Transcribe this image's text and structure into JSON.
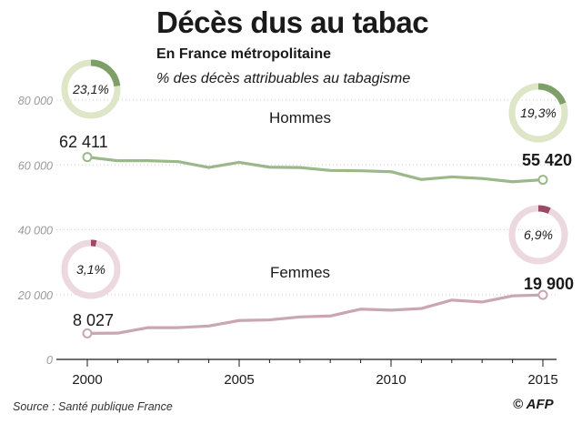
{
  "title": "Décès dus au tabac",
  "subtitle": "En France métropolitaine",
  "note": "% des décès attribuables au tabagisme",
  "source": "Source : Santé publique France",
  "logo": "© AFP",
  "colors": {
    "men_line": "#9bb88a",
    "men_ring": "#dde6c7",
    "men_fill": "#7e9f68",
    "women_line": "#c9a6b2",
    "women_ring": "#ecd9df",
    "women_fill": "#9a4a63",
    "axis_text": "#9a9a9a",
    "grid": "#cfcfcf"
  },
  "chart_data": {
    "type": "line",
    "x": [
      2000,
      2001,
      2002,
      2003,
      2004,
      2005,
      2006,
      2007,
      2008,
      2009,
      2010,
      2011,
      2012,
      2013,
      2014,
      2015
    ],
    "xticks": [
      "2000",
      "2005",
      "2010",
      "2015"
    ],
    "yticks": [
      "0",
      "20 000",
      "40 000",
      "60 000",
      "80 000"
    ],
    "ylim": [
      0,
      80000
    ],
    "xlim": [
      2000,
      2015
    ],
    "grid": "horizontal dotted",
    "series": [
      {
        "name": "Hommes",
        "values": [
          62411,
          61300,
          61300,
          61000,
          59200,
          60800,
          59300,
          59200,
          58300,
          58200,
          57900,
          55500,
          56300,
          55800,
          54800,
          55420
        ],
        "start_label": "62 411",
        "end_label": "55 420",
        "pct_2000": 23.1,
        "pct_2000_label": "23,1%",
        "pct_2015": 19.3,
        "pct_2015_label": "19,3%"
      },
      {
        "name": "Femmes",
        "values": [
          8027,
          8100,
          9800,
          9800,
          10300,
          12000,
          12200,
          13100,
          13400,
          15500,
          15200,
          15700,
          18300,
          17700,
          19600,
          19900
        ],
        "start_label": "8 027",
        "end_label": "19 900",
        "pct_2000": 3.1,
        "pct_2000_label": "3,1%",
        "pct_2015": 6.9,
        "pct_2015_label": "6,9%"
      }
    ]
  }
}
